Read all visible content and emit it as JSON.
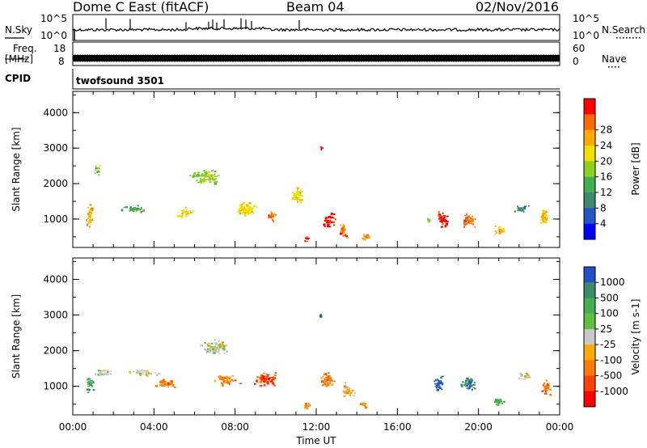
{
  "header": {
    "station": "Dome C East (fitACF)",
    "beam": "Beam 04",
    "date": "02/Nov/2016"
  },
  "summary_panels": {
    "nsky_label": "N.Sky",
    "nsky_tick_top": "10^5",
    "nsky_tick_bottom": "10^0",
    "nsky_tick_top_right": "10^5",
    "nsky_tick_bottom_right": "10^0",
    "nsearch_label": "N.Search",
    "freq_label": "Freq.",
    "freq_unit": "[MHz]",
    "freq_ticks": [
      "18",
      "8"
    ],
    "nave_label": "Nave",
    "nave_ticks": [
      "60",
      "0"
    ],
    "cpid_label": "CPID",
    "cpid_value": "twofsound 3501"
  },
  "chart_data": [
    {
      "type": "heatmap",
      "name": "power",
      "ylabel": "Slant Range [km]",
      "yticks": [
        "1000",
        "2000",
        "3000",
        "4000"
      ],
      "ylim": [
        200,
        4600
      ],
      "xlim": [
        0,
        24
      ],
      "colorbar_label": "Power [dB]",
      "colorbar_ticks": [
        "4",
        "8",
        "12",
        "16",
        "20",
        "24",
        "28"
      ],
      "colorscale": [
        "#0000ff",
        "#2455c8",
        "#3e8a6e",
        "#42b050",
        "#8cd020",
        "#f0e000",
        "#ffaa00",
        "#ff6a00",
        "#ff0000"
      ],
      "blobs": [
        {
          "t": 0.8,
          "r": 1100,
          "dt": 0.4,
          "dr": 600,
          "c": 6
        },
        {
          "t": 1.2,
          "r": 2400,
          "dt": 0.4,
          "dr": 300,
          "c": 4
        },
        {
          "t": 3.0,
          "r": 1300,
          "dt": 1.2,
          "dr": 200,
          "c": 3
        },
        {
          "t": 5.5,
          "r": 1200,
          "dt": 0.8,
          "dr": 300,
          "c": 5
        },
        {
          "t": 6.5,
          "r": 2200,
          "dt": 1.5,
          "dr": 400,
          "c": 4
        },
        {
          "t": 8.5,
          "r": 1300,
          "dt": 1.2,
          "dr": 400,
          "c": 5
        },
        {
          "t": 9.8,
          "r": 1100,
          "dt": 0.5,
          "dr": 300,
          "c": 7
        },
        {
          "t": 11.0,
          "r": 1700,
          "dt": 0.6,
          "dr": 500,
          "c": 5
        },
        {
          "t": 11.5,
          "r": 450,
          "dt": 0.3,
          "dr": 200,
          "c": 8
        },
        {
          "t": 12.6,
          "r": 1000,
          "dt": 0.6,
          "dr": 500,
          "c": 8
        },
        {
          "t": 13.3,
          "r": 700,
          "dt": 0.5,
          "dr": 400,
          "c": 7
        },
        {
          "t": 14.4,
          "r": 500,
          "dt": 0.5,
          "dr": 250,
          "c": 6
        },
        {
          "t": 12.2,
          "r": 3050,
          "dt": 0.15,
          "dr": 150,
          "c": 8
        },
        {
          "t": 18.2,
          "r": 1000,
          "dt": 0.6,
          "dr": 500,
          "c": 8
        },
        {
          "t": 19.5,
          "r": 1000,
          "dt": 0.8,
          "dr": 400,
          "c": 7
        },
        {
          "t": 21.0,
          "r": 700,
          "dt": 0.6,
          "dr": 250,
          "c": 6
        },
        {
          "t": 22.0,
          "r": 1300,
          "dt": 0.8,
          "dr": 200,
          "c": 2
        },
        {
          "t": 23.2,
          "r": 1100,
          "dt": 0.6,
          "dr": 400,
          "c": 6
        },
        {
          "t": 17.5,
          "r": 1000,
          "dt": 0.2,
          "dr": 200,
          "c": 4
        }
      ]
    },
    {
      "type": "heatmap",
      "name": "velocity",
      "ylabel": "Slant Range [km]",
      "yticks": [
        "1000",
        "2000",
        "3000",
        "4000"
      ],
      "ylim": [
        200,
        4600
      ],
      "xlim": [
        0,
        24
      ],
      "xlabel": "Time UT",
      "xticks": [
        "00:00",
        "04:00",
        "08:00",
        "12:00",
        "16:00",
        "20:00",
        "00:00"
      ],
      "colorbar_label": "Velocity",
      "colorbar_unit": "[m s-1]",
      "colorbar_ticks": [
        "1000",
        "500",
        "100",
        "25",
        "-25",
        "-100",
        "-500",
        "-1000"
      ],
      "colorscale": [
        "#2050c8",
        "#3e8a6e",
        "#42b050",
        "#60c040",
        "#c8c8c8",
        "#ffaa00",
        "#ff7a00",
        "#ff4000",
        "#ff0000"
      ],
      "blobs": [
        {
          "t": 0.8,
          "r": 1100,
          "dt": 0.4,
          "dr": 500,
          "c": 2
        },
        {
          "t": 1.5,
          "r": 1400,
          "dt": 1.0,
          "dr": 200,
          "c": 4
        },
        {
          "t": 3.5,
          "r": 1400,
          "dt": 1.5,
          "dr": 200,
          "c": 4
        },
        {
          "t": 4.5,
          "r": 1100,
          "dt": 1.2,
          "dr": 250,
          "c": 6
        },
        {
          "t": 7.0,
          "r": 2100,
          "dt": 1.5,
          "dr": 450,
          "c": 4
        },
        {
          "t": 7.5,
          "r": 1200,
          "dt": 1.3,
          "dr": 300,
          "c": 6
        },
        {
          "t": 9.5,
          "r": 1200,
          "dt": 1.2,
          "dr": 400,
          "c": 7
        },
        {
          "t": 11.5,
          "r": 500,
          "dt": 0.4,
          "dr": 250,
          "c": 6
        },
        {
          "t": 12.5,
          "r": 1200,
          "dt": 0.7,
          "dr": 500,
          "c": 6
        },
        {
          "t": 13.5,
          "r": 900,
          "dt": 0.7,
          "dr": 400,
          "c": 5
        },
        {
          "t": 14.3,
          "r": 500,
          "dt": 0.4,
          "dr": 200,
          "c": 6
        },
        {
          "t": 18.0,
          "r": 1100,
          "dt": 0.5,
          "dr": 500,
          "c": 0
        },
        {
          "t": 19.5,
          "r": 1100,
          "dt": 0.8,
          "dr": 400,
          "c": 1
        },
        {
          "t": 21.0,
          "r": 600,
          "dt": 0.6,
          "dr": 250,
          "c": 2
        },
        {
          "t": 22.3,
          "r": 1300,
          "dt": 0.8,
          "dr": 200,
          "c": 4
        },
        {
          "t": 23.3,
          "r": 1000,
          "dt": 0.5,
          "dr": 400,
          "c": 6
        },
        {
          "t": 12.2,
          "r": 3000,
          "dt": 0.15,
          "dr": 150,
          "c": 0
        }
      ]
    }
  ]
}
